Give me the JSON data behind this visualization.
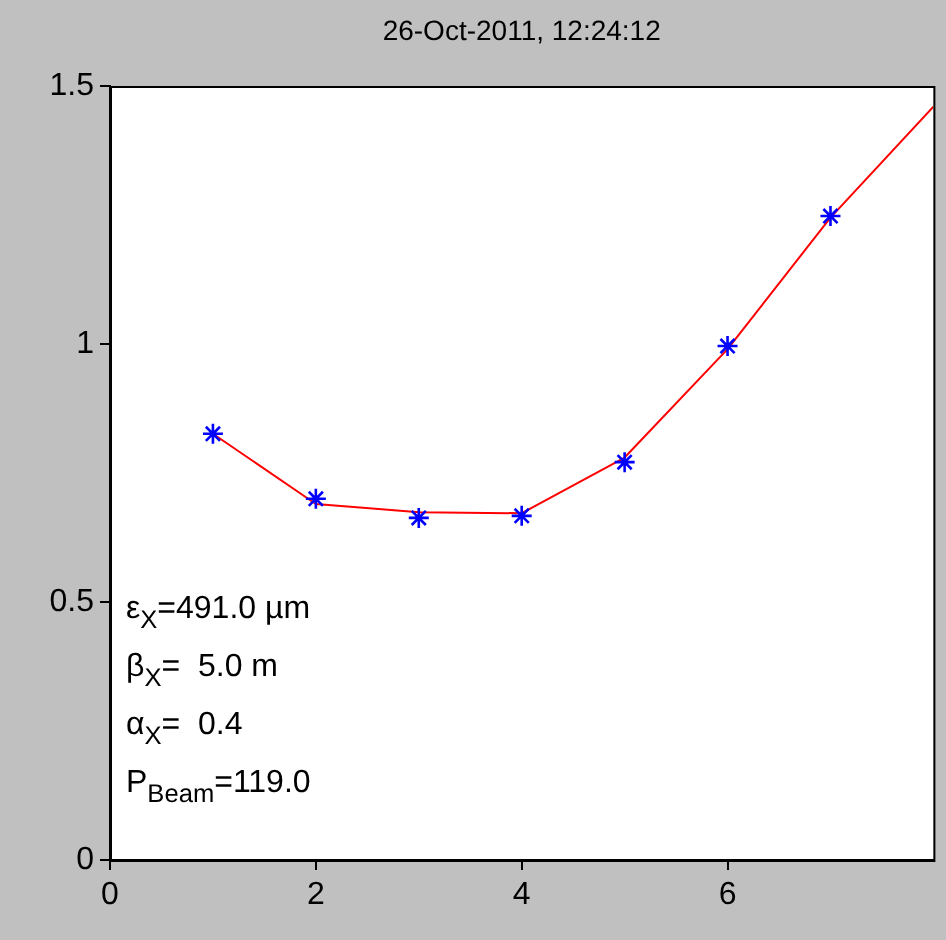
{
  "chart_data": {
    "type": "line",
    "title": "26-Oct-2011, 12:24:12",
    "xlim": [
      0,
      8
    ],
    "xticks": [
      0,
      2,
      4,
      6
    ],
    "ylim": [
      0,
      1.5
    ],
    "yticks": [
      0,
      0.5,
      1,
      1.5
    ],
    "grid": false,
    "legend": false,
    "series": [
      {
        "type": "scatter",
        "color": "#0000ff",
        "marker": "cross",
        "x": [
          1,
          2,
          3,
          4,
          5,
          6,
          7
        ],
        "values": [
          0.826,
          0.7,
          0.663,
          0.667,
          0.771,
          0.996,
          1.248
        ]
      },
      {
        "color": "#ff0000",
        "marker": "none",
        "x": [
          1,
          2,
          3,
          4,
          5,
          6,
          7,
          8
        ],
        "values": [
          0.826,
          0.69,
          0.674,
          0.672,
          0.78,
          0.99,
          1.245,
          1.46
        ]
      }
    ],
    "annotations": [
      "ε$_{X}$=491.0 µm",
      "β$_{X}$=  5.0 m",
      "α$_{X}$=  0.4",
      "P$_{Beam}$=119.0"
    ]
  }
}
